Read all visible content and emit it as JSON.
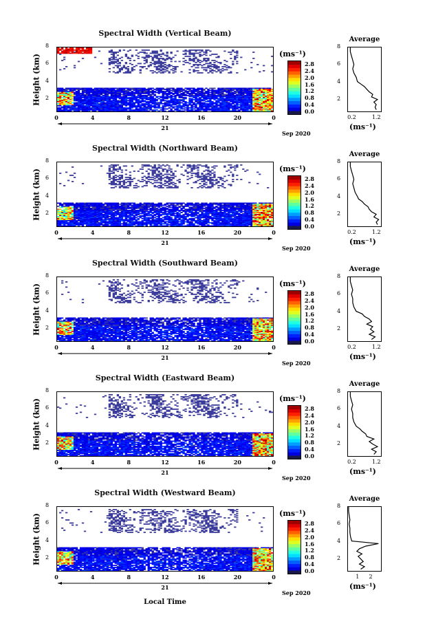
{
  "chart_data": [
    {
      "type": "heatmap",
      "title": "Spectral Width (Vertical Beam)",
      "ylabel": "Height (km)",
      "yticks": [
        "2",
        "4",
        "6",
        "8"
      ],
      "ylim": [
        0.5,
        8
      ],
      "xticks": [
        "0",
        "4",
        "8",
        "12",
        "16",
        "20",
        "0"
      ],
      "xlim": [
        0,
        24
      ],
      "day_label": "21",
      "month_label": "Sep 2020",
      "colorbar": {
        "unit": "(ms⁻¹)",
        "ticks": [
          "0.0",
          "0.4",
          "0.8",
          "1.2",
          "1.6",
          "2.0",
          "2.4",
          "2.8"
        ],
        "range": [
          0,
          3.0
        ]
      },
      "average": {
        "title": "Average",
        "xlabel": "(ms⁻¹)",
        "xticks": [
          "0.2",
          "1.2"
        ],
        "xlim": [
          0,
          1.4
        ],
        "yticks": [
          "2",
          "4",
          "6",
          "8"
        ],
        "profile_height": [
          0.7,
          1.0,
          1.3,
          1.6,
          1.9,
          2.2,
          2.5,
          2.8,
          3.1,
          3.4,
          3.7,
          4.0,
          4.5,
          5.0,
          5.5,
          6.0,
          6.5,
          7.0,
          7.5,
          8.0
        ],
        "profile_value": [
          1.2,
          1.15,
          1.2,
          1.1,
          1.25,
          1.0,
          1.05,
          0.9,
          0.8,
          0.7,
          0.55,
          0.4,
          0.35,
          0.25,
          0.2,
          0.25,
          0.2,
          0.15,
          0.1,
          0.1
        ]
      }
    },
    {
      "type": "heatmap",
      "title": "Spectral Width (Northward Beam)",
      "ylabel": "Height (km)",
      "yticks": [
        "2",
        "4",
        "6",
        "8"
      ],
      "ylim": [
        0.5,
        8
      ],
      "xticks": [
        "0",
        "4",
        "8",
        "12",
        "16",
        "20",
        "0"
      ],
      "xlim": [
        0,
        24
      ],
      "day_label": "21",
      "month_label": "Sep 2020",
      "colorbar": {
        "unit": "(ms⁻¹)",
        "ticks": [
          "0.0",
          "0.4",
          "0.8",
          "1.2",
          "1.6",
          "2.0",
          "2.4",
          "2.8"
        ],
        "range": [
          0,
          3.0
        ]
      },
      "average": {
        "title": "Average",
        "xlabel": "(ms⁻¹)",
        "xticks": [
          "0.2",
          "1.2"
        ],
        "xlim": [
          0,
          1.4
        ],
        "yticks": [
          "2",
          "4",
          "6",
          "8"
        ],
        "profile_height": [
          0.7,
          1.0,
          1.3,
          1.6,
          1.9,
          2.2,
          2.5,
          2.8,
          3.1,
          3.4,
          3.7,
          4.0,
          4.5,
          5.0,
          5.5,
          6.0,
          6.5,
          7.0,
          7.5,
          8.0
        ],
        "profile_value": [
          1.25,
          1.2,
          1.3,
          1.1,
          1.2,
          1.0,
          0.9,
          0.85,
          0.7,
          0.6,
          0.45,
          0.4,
          0.3,
          0.25,
          0.2,
          0.25,
          0.2,
          0.15,
          0.1,
          0.1
        ]
      }
    },
    {
      "type": "heatmap",
      "title": "Spectral Width (Southward Beam)",
      "ylabel": "Height (km)",
      "yticks": [
        "2",
        "4",
        "6",
        "8"
      ],
      "ylim": [
        0.5,
        8
      ],
      "xticks": [
        "0",
        "4",
        "8",
        "12",
        "16",
        "20",
        "0"
      ],
      "xlim": [
        0,
        24
      ],
      "day_label": "21",
      "month_label": "Sep 2020",
      "colorbar": {
        "unit": "(ms⁻¹)",
        "ticks": [
          "0.0",
          "0.4",
          "0.8",
          "1.2",
          "1.6",
          "2.0",
          "2.4",
          "2.8"
        ],
        "range": [
          0,
          3.0
        ]
      },
      "average": {
        "title": "Average",
        "xlabel": "(ms⁻¹)",
        "xticks": [
          "0.2",
          "1.2"
        ],
        "xlim": [
          0,
          1.4
        ],
        "yticks": [
          "2",
          "4",
          "6",
          "8"
        ],
        "profile_height": [
          0.7,
          1.0,
          1.3,
          1.6,
          1.9,
          2.2,
          2.5,
          2.8,
          3.1,
          3.4,
          3.7,
          4.0,
          4.5,
          5.0,
          5.5,
          6.0,
          6.5,
          7.0,
          7.5,
          8.0
        ],
        "profile_value": [
          1.0,
          1.15,
          0.9,
          1.1,
          0.95,
          1.05,
          0.8,
          1.0,
          0.9,
          0.7,
          0.6,
          0.35,
          0.25,
          0.2,
          0.2,
          0.15,
          0.2,
          0.15,
          0.1,
          0.1
        ]
      }
    },
    {
      "type": "heatmap",
      "title": "Spectral Width (Eastward Beam)",
      "ylabel": "Height (km)",
      "yticks": [
        "2",
        "4",
        "6",
        "8"
      ],
      "ylim": [
        0.5,
        8
      ],
      "xticks": [
        "0",
        "4",
        "8",
        "12",
        "16",
        "20",
        "0"
      ],
      "xlim": [
        0,
        24
      ],
      "day_label": "21",
      "month_label": "Sep 2020",
      "colorbar": {
        "unit": "(ms⁻¹)",
        "ticks": [
          "0.0",
          "0.4",
          "0.8",
          "1.2",
          "1.6",
          "2.0",
          "2.4",
          "2.8"
        ],
        "range": [
          0,
          3.0
        ]
      },
      "average": {
        "title": "Average",
        "xlabel": "(ms⁻¹)",
        "xticks": [
          "0.2",
          "1.2"
        ],
        "xlim": [
          0,
          1.4
        ],
        "yticks": [
          "2",
          "4",
          "6",
          "8"
        ],
        "profile_height": [
          0.7,
          1.0,
          1.3,
          1.6,
          1.9,
          2.2,
          2.5,
          2.8,
          3.1,
          3.4,
          3.7,
          4.0,
          4.5,
          5.0,
          5.5,
          6.0,
          6.5,
          7.0,
          7.5,
          8.0
        ],
        "profile_value": [
          1.1,
          1.2,
          1.0,
          1.25,
          1.05,
          0.9,
          1.1,
          0.8,
          0.75,
          0.6,
          0.5,
          0.35,
          0.25,
          0.2,
          0.2,
          0.15,
          0.2,
          0.15,
          0.1,
          0.1
        ]
      }
    },
    {
      "type": "heatmap",
      "title": "Spectral Width (Westward Beam)",
      "ylabel": "Height (km)",
      "yticks": [
        "2",
        "4",
        "6",
        "8"
      ],
      "ylim": [
        0.5,
        8
      ],
      "xticks": [
        "0",
        "4",
        "8",
        "12",
        "16",
        "20",
        "0"
      ],
      "xlim": [
        0,
        24
      ],
      "day_label": "21",
      "month_label": "Sep 2020",
      "colorbar": {
        "unit": "(ms⁻¹)",
        "ticks": [
          "0.0",
          "0.4",
          "0.8",
          "1.2",
          "1.6",
          "2.0",
          "2.4",
          "2.8"
        ],
        "range": [
          0,
          3.0
        ]
      },
      "average": {
        "title": "Average",
        "xlabel": "(ms⁻¹)",
        "xticks": [
          "1",
          "2"
        ],
        "xlim": [
          0,
          2.6
        ],
        "yticks": [
          "2",
          "4",
          "6",
          "8"
        ],
        "profile_height": [
          0.7,
          1.0,
          1.3,
          1.6,
          1.9,
          2.2,
          2.5,
          2.8,
          3.1,
          3.4,
          3.7,
          4.0,
          4.5,
          5.0,
          5.5,
          6.0,
          6.5,
          7.0,
          7.5,
          8.0
        ],
        "profile_value": [
          1.0,
          1.3,
          0.9,
          1.2,
          1.0,
          0.8,
          1.1,
          0.7,
          0.9,
          1.4,
          2.4,
          0.3,
          0.2,
          0.15,
          0.15,
          0.1,
          0.15,
          0.1,
          0.05,
          0.05
        ]
      }
    }
  ],
  "footer": {
    "xlabel": "Local Time"
  }
}
